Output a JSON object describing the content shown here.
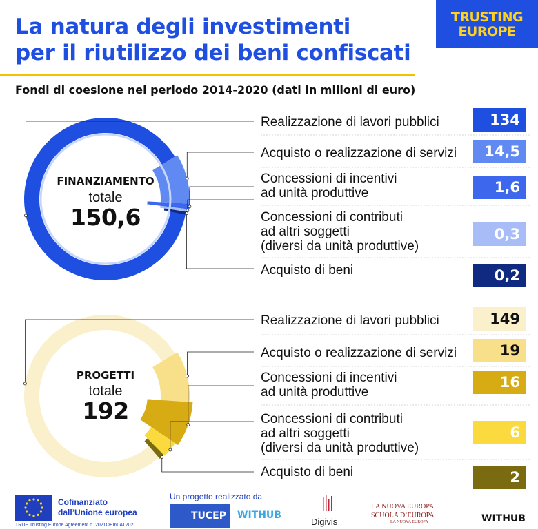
{
  "header": {
    "title_line1": "La natura degli investimenti",
    "title_line2": "per il riutilizzo dei beni confiscati",
    "subtitle": "Fondi di coesione nel periodo 2014-2020 (dati in milioni di euro)",
    "logo_line1": "TRUSTING",
    "logo_line2": "EUROPE",
    "title_color": "#1f4fe0",
    "accent_color": "#f2c200"
  },
  "chart_data": [
    {
      "type": "donut",
      "center_label": "FINANZIAMENTO",
      "center_sub": "totale",
      "center_value": "150,6",
      "total": 150.6,
      "base_color": "#1f4fe0",
      "segments": [
        {
          "label": "Realizzazione di lavori pubblici",
          "value": 134,
          "display": "134",
          "color": "#1f4fe0",
          "text_color": "#ffffff"
        },
        {
          "label": "Acquisto o realizzazione di servizi",
          "value": 14.5,
          "display": "14,5",
          "color": "#6089f2",
          "text_color": "#ffffff"
        },
        {
          "label": "Concessioni di incentivi ad unità produttive",
          "label_lines": [
            "Concessioni di incentivi",
            "ad unità produttive"
          ],
          "value": 1.6,
          "display": "1,6",
          "color": "#3d67ec",
          "text_color": "#ffffff"
        },
        {
          "label": "Concessioni di contributi ad altri soggetti (diversi da unità produttive)",
          "label_lines": [
            "Concessioni di contributi",
            "ad altri soggetti",
            "(diversi da unità produttive)"
          ],
          "value": 0.3,
          "display": "0,3",
          "color": "#a8bdf7",
          "text_color": "#ffffff"
        },
        {
          "label": "Acquisto di beni",
          "value": 0.2,
          "display": "0,2",
          "color": "#0f2a80",
          "text_color": "#ffffff"
        }
      ]
    },
    {
      "type": "donut",
      "center_label": "PROGETTI",
      "center_sub": "totale",
      "center_value": "192",
      "total": 192,
      "base_color": "#fbf0cc",
      "segments": [
        {
          "label": "Realizzazione di lavori pubblici",
          "value": 149,
          "display": "149",
          "color": "#fbf0cc",
          "text_color": "#111111"
        },
        {
          "label": "Acquisto o realizzazione di servizi",
          "value": 19,
          "display": "19",
          "color": "#f8df8a",
          "text_color": "#111111"
        },
        {
          "label": "Concessioni di incentivi ad unità produttive",
          "label_lines": [
            "Concessioni di incentivi",
            "ad unità produttive"
          ],
          "value": 16,
          "display": "16",
          "color": "#d7ab13",
          "text_color": "#ffffff"
        },
        {
          "label": "Concessioni di contributi ad altri soggetti (diversi da unità produttive)",
          "label_lines": [
            "Concessioni di contributi",
            "ad altri soggetti",
            "(diversi da unità produttive)"
          ],
          "value": 6,
          "display": "6",
          "color": "#fbda3f",
          "text_color": "#ffffff"
        },
        {
          "label": "Acquisto di beni",
          "value": 2,
          "display": "2",
          "color": "#7a6a10",
          "text_color": "#ffffff"
        }
      ]
    }
  ],
  "footer": {
    "eu_line1": "Cofinanziato",
    "eu_line2": "dall’Unione europea",
    "eu_small": "TRUE Trusting Europe Agreement n. 2021OEI60AT202",
    "project_text": "Un progetto realizzato da",
    "tucep": "TUCEP",
    "withub_center": "WITHUB",
    "digivis": "Digivis",
    "nuova1": "LA NUOVA EUROPA",
    "nuova2": "SCUOLA D’EUROPA",
    "nuova3": "LA NUOVA EUROPA",
    "withub_right": "WITHUB"
  }
}
